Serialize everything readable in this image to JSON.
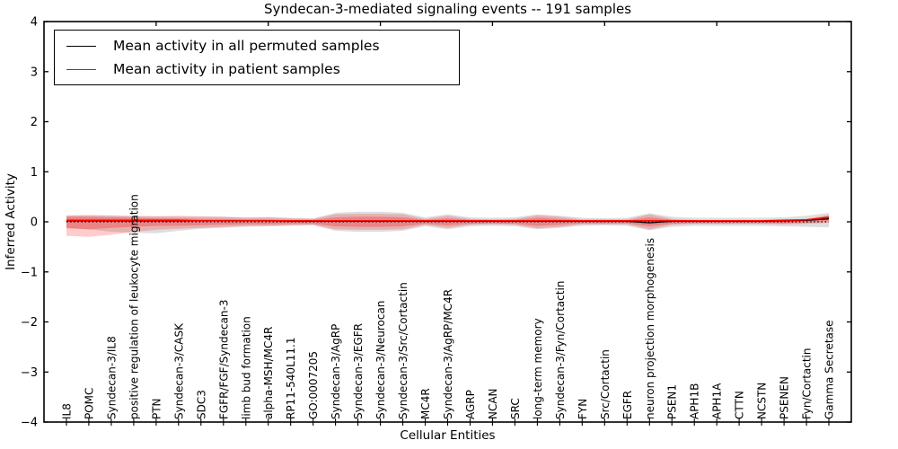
{
  "chart_data": {
    "type": "line",
    "title": "Syndecan-3-mediated signaling events -- 191 samples",
    "num_samples": 191,
    "xlabel": "Cellular Entities",
    "ylabel": "Inferred Activity",
    "ylim": [
      -4,
      4
    ],
    "yticks": [
      -4,
      -3,
      -2,
      -1,
      0,
      1,
      2,
      3,
      4
    ],
    "xlim": [
      0,
      36
    ],
    "top_axis_ticks": [
      5,
      10,
      15,
      20,
      25,
      30,
      35
    ],
    "grid": false,
    "legend_position": "upper left",
    "legend": [
      {
        "label": "Mean activity in all permuted samples",
        "color": "#000000"
      },
      {
        "label": "Mean activity in patient samples",
        "color": "#ff0000"
      }
    ],
    "zero_line": {
      "y": 0,
      "style": "dotted",
      "color": "#000000"
    },
    "categories": [
      "IL8",
      "POMC",
      "Syndecan-3/IL8",
      "positive regulation of leukocyte migration",
      "PTN",
      "Syndecan-3/CASK",
      "SDC3",
      "FGFR/FGF/Syndecan-3",
      "limb bud formation",
      "alpha-MSH/MC4R",
      "RP11-540L11.1",
      "GO:0007205",
      "Syndecan-3/AgRP",
      "Syndecan-3/EGFR",
      "Syndecan-3/Neurocan",
      "Syndecan-3/Src/Cortactin",
      "MC4R",
      "Syndecan-3/AgRP/MC4R",
      "AGRP",
      "NCAN",
      "SRC",
      "long-term memory",
      "Syndecan-3/Fyn/Cortactin",
      "FYN",
      "Src/Cortactin",
      "EGFR",
      "neuron projection morphogenesis",
      "PSEN1",
      "APH1B",
      "APH1A",
      "CTTN",
      "NCSTN",
      "PSENEN",
      "Fyn/Cortactin",
      "Gamma Secretase"
    ],
    "series": [
      {
        "name": "Mean activity in all permuted samples",
        "color": "#000000",
        "values": [
          0.02,
          0.02,
          0.02,
          0.02,
          0.02,
          0.02,
          0.02,
          0.02,
          0.02,
          0.02,
          0.01,
          0.01,
          0.01,
          0.01,
          0.01,
          0.01,
          0.01,
          0.01,
          0.01,
          0.01,
          0.01,
          0.01,
          0.01,
          0.01,
          0.01,
          0.01,
          -0.02,
          0.01,
          0.01,
          0.01,
          0.01,
          0.01,
          0.02,
          0.03,
          0.06
        ]
      },
      {
        "name": "Mean activity in patient samples",
        "color": "#ff0000",
        "values": [
          0.03,
          0.03,
          0.03,
          0.03,
          0.03,
          0.03,
          0.02,
          0.02,
          0.02,
          0.02,
          0.02,
          0.02,
          0.02,
          0.02,
          0.02,
          0.02,
          0.02,
          0.02,
          0.02,
          0.02,
          0.02,
          0.02,
          0.02,
          0.02,
          0.02,
          0.02,
          0.02,
          0.02,
          0.02,
          0.02,
          0.02,
          0.02,
          0.03,
          0.04,
          0.09
        ]
      }
    ],
    "bands": [
      {
        "name": "permuted-std-band",
        "color": "#000000",
        "opacity": 0.13,
        "hi": [
          0.12,
          0.12,
          0.12,
          0.11,
          0.11,
          0.1,
          0.1,
          0.1,
          0.09,
          0.09,
          0.08,
          0.07,
          0.18,
          0.2,
          0.2,
          0.18,
          0.09,
          0.15,
          0.09,
          0.08,
          0.09,
          0.15,
          0.12,
          0.08,
          0.07,
          0.08,
          0.17,
          0.1,
          0.08,
          0.08,
          0.08,
          0.08,
          0.09,
          0.12,
          0.18
        ],
        "lo": [
          -0.12,
          -0.15,
          -0.2,
          -0.22,
          -0.23,
          -0.18,
          -0.14,
          -0.12,
          -0.1,
          -0.09,
          -0.08,
          -0.07,
          -0.18,
          -0.2,
          -0.2,
          -0.18,
          -0.09,
          -0.15,
          -0.09,
          -0.08,
          -0.09,
          -0.15,
          -0.12,
          -0.08,
          -0.07,
          -0.08,
          -0.17,
          -0.1,
          -0.08,
          -0.08,
          -0.08,
          -0.08,
          -0.09,
          -0.1,
          -0.11
        ]
      },
      {
        "name": "patient-outer-std-band",
        "color": "#ff0000",
        "opacity": 0.2,
        "hi": [
          0.13,
          0.14,
          0.13,
          0.12,
          0.11,
          0.12,
          0.11,
          0.1,
          0.08,
          0.09,
          0.07,
          0.06,
          0.15,
          0.16,
          0.16,
          0.15,
          0.06,
          0.12,
          0.06,
          0.05,
          0.06,
          0.13,
          0.1,
          0.05,
          0.05,
          0.05,
          0.15,
          0.06,
          0.04,
          0.04,
          0.04,
          0.04,
          0.05,
          0.06,
          0.14
        ],
        "lo": [
          -0.28,
          -0.3,
          -0.26,
          -0.2,
          -0.16,
          -0.14,
          -0.12,
          -0.1,
          -0.08,
          -0.08,
          -0.07,
          -0.06,
          -0.15,
          -0.16,
          -0.16,
          -0.15,
          -0.06,
          -0.12,
          -0.06,
          -0.05,
          -0.06,
          -0.13,
          -0.1,
          -0.05,
          -0.05,
          -0.05,
          -0.15,
          -0.06,
          -0.04,
          -0.04,
          -0.04,
          -0.04,
          -0.05,
          -0.04,
          -0.02
        ]
      },
      {
        "name": "patient-inner-std-band",
        "color": "#ff0000",
        "opacity": 0.25,
        "hi": [
          0.1,
          0.1,
          0.09,
          0.08,
          0.07,
          0.07,
          0.06,
          0.06,
          0.05,
          0.05,
          0.04,
          0.04,
          0.09,
          0.1,
          0.1,
          0.09,
          0.04,
          0.07,
          0.04,
          0.03,
          0.04,
          0.08,
          0.06,
          0.03,
          0.03,
          0.03,
          0.09,
          0.04,
          0.03,
          0.03,
          0.03,
          0.03,
          0.03,
          0.04,
          0.12
        ],
        "lo": [
          -0.13,
          -0.15,
          -0.12,
          -0.1,
          -0.08,
          -0.08,
          -0.07,
          -0.06,
          -0.05,
          -0.05,
          -0.04,
          -0.04,
          -0.09,
          -0.1,
          -0.1,
          -0.09,
          -0.04,
          -0.07,
          -0.04,
          -0.03,
          -0.04,
          -0.08,
          -0.06,
          -0.03,
          -0.03,
          -0.03,
          -0.09,
          -0.04,
          -0.03,
          -0.03,
          -0.03,
          -0.03,
          -0.03,
          -0.02,
          0.02
        ]
      }
    ],
    "colors": {
      "frame": "#000000",
      "background": "#ffffff",
      "accent_red": "#ff0000"
    }
  }
}
